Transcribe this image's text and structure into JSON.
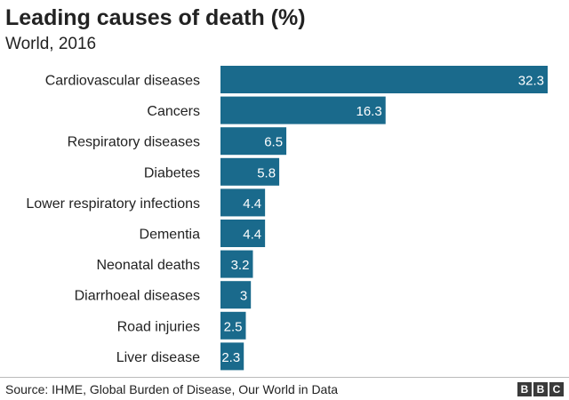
{
  "chart_data": {
    "type": "bar",
    "orientation": "horizontal",
    "title": "Leading causes of death (%)",
    "subtitle": "World, 2016",
    "categories": [
      "Cardiovascular diseases",
      "Cancers",
      "Respiratory diseases",
      "Diabetes",
      "Lower respiratory infections",
      "Dementia",
      "Neonatal deaths",
      "Diarrhoeal diseases",
      "Road injuries",
      "Liver disease"
    ],
    "values": [
      32.3,
      16.3,
      6.5,
      5.8,
      4.4,
      4.4,
      3.2,
      3,
      2.5,
      2.3
    ],
    "value_labels": [
      "32.3",
      "16.3",
      "6.5",
      "5.8",
      "4.4",
      "4.4",
      "3.2",
      "3",
      "2.5",
      "2.3"
    ],
    "xlim": [
      0,
      32.3
    ],
    "grid": false,
    "bar_color": "#1a6a8c"
  },
  "footer": {
    "source": "Source: IHME, Global Burden of Disease, Our World in Data",
    "logo": [
      "B",
      "B",
      "C"
    ]
  }
}
